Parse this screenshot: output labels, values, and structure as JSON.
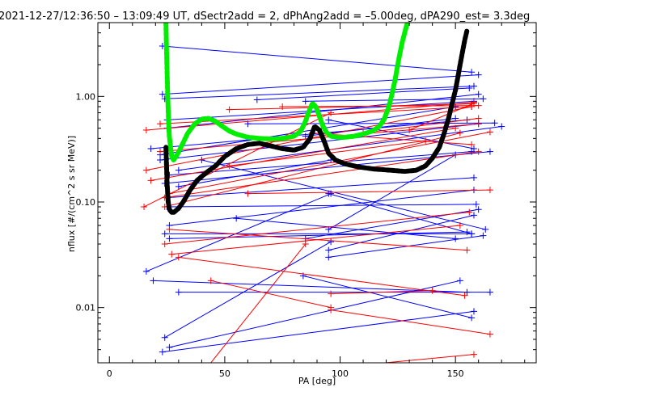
{
  "chart_data": {
    "type": "scatter",
    "title": "2021-12-27/12:36:50 – 13:09:49 UT, dSectr2add = 2, dPhAng2add = –5.00deg, dPA290_est=   3.3deg",
    "xlabel": "PA [deg]",
    "ylabel": "nflux [#/(cm^2 s sr MeV)]",
    "xlim": [
      -5,
      185
    ],
    "ylim": [
      0.003,
      5.0
    ],
    "yscale": "log",
    "x_ticks": [
      0,
      50,
      100,
      150
    ],
    "x_tick_labels": [
      "0",
      "50",
      "100",
      "150"
    ],
    "y_ticks": [
      0.01,
      0.1,
      1.0
    ],
    "y_tick_labels": [
      "0.01",
      "0.10",
      "1.00"
    ],
    "grid": false,
    "legend": "none",
    "series": [
      {
        "color": "#0000ff",
        "marker": "+",
        "segments": [
          [
            [
              23,
              3.0
            ],
            [
              157,
              1.7
            ]
          ],
          [
            [
              23,
              1.05
            ],
            [
              160,
              1.6
            ]
          ],
          [
            [
              24,
              0.95
            ],
            [
              158,
              1.25
            ]
          ],
          [
            [
              25,
              0.6
            ],
            [
              158,
              0.9
            ]
          ],
          [
            [
              25,
              0.5
            ],
            [
              160,
              1.05
            ]
          ],
          [
            [
              18,
              0.32
            ],
            [
              155,
              0.6
            ]
          ],
          [
            [
              22,
              0.28
            ],
            [
              150,
              0.8
            ]
          ],
          [
            [
              22,
              0.25
            ],
            [
              160,
              0.55
            ]
          ],
          [
            [
              26,
              0.18
            ],
            [
              157,
              0.3
            ]
          ],
          [
            [
              24,
              0.15
            ],
            [
              165,
              0.3
            ]
          ],
          [
            [
              30,
              0.14
            ],
            [
              96,
              0.25
            ]
          ],
          [
            [
              25,
              0.11
            ],
            [
              158,
              0.17
            ]
          ],
          [
            [
              25,
              0.09
            ],
            [
              159,
              0.095
            ]
          ],
          [
            [
              26,
              0.06
            ],
            [
              158,
              0.13
            ]
          ],
          [
            [
              24,
              0.05
            ],
            [
              157,
              0.05
            ]
          ],
          [
            [
              26,
              0.045
            ],
            [
              155,
              0.052
            ]
          ],
          [
            [
              16,
              0.022
            ],
            [
              96,
              0.12
            ]
          ],
          [
            [
              19,
              0.018
            ],
            [
              155,
              0.014
            ]
          ],
          [
            [
              24,
              0.0052
            ],
            [
              96,
              0.042
            ]
          ],
          [
            [
              23,
              0.0038
            ],
            [
              158,
              0.0092
            ]
          ],
          [
            [
              26,
              0.0042
            ],
            [
              152,
              0.018
            ]
          ],
          [
            [
              30,
              0.014
            ],
            [
              165,
              0.014
            ]
          ],
          [
            [
              40,
              0.25
            ],
            [
              163,
              0.055
            ]
          ],
          [
            [
              55,
              0.07
            ],
            [
              150,
              0.045
            ]
          ],
          [
            [
              85,
              0.045
            ],
            [
              160,
              0.085
            ]
          ],
          [
            [
              95,
              0.035
            ],
            [
              158,
              0.075
            ]
          ],
          [
            [
              84,
              0.02
            ],
            [
              157,
              0.008
            ]
          ],
          [
            [
              95,
              0.055
            ],
            [
              150,
              0.28
            ]
          ],
          [
            [
              30,
              0.2
            ],
            [
              170,
              0.52
            ]
          ],
          [
            [
              95,
              0.6
            ],
            [
              158,
              0.32
            ]
          ],
          [
            [
              60,
              0.55
            ],
            [
              167,
              0.56
            ]
          ],
          [
            [
              64,
              0.93
            ],
            [
              156,
              1.2
            ]
          ],
          [
            [
              85,
              0.9
            ],
            [
              162,
              0.95
            ]
          ],
          [
            [
              85,
              0.42
            ],
            [
              150,
              0.62
            ]
          ],
          [
            [
              95,
              0.12
            ],
            [
              157,
              0.05
            ]
          ],
          [
            [
              95,
              0.03
            ],
            [
              162,
              0.048
            ]
          ]
        ]
      },
      {
        "color": "#ff0000",
        "marker": "+",
        "segments": [
          [
            [
              16,
              0.48
            ],
            [
              158,
              0.88
            ]
          ],
          [
            [
              16,
              0.2
            ],
            [
              157,
              0.8
            ]
          ],
          [
            [
              18,
              0.16
            ],
            [
              150,
              0.5
            ]
          ],
          [
            [
              22,
              0.55
            ],
            [
              157,
              0.8
            ]
          ],
          [
            [
              22,
              0.3
            ],
            [
              160,
              0.55
            ]
          ],
          [
            [
              24,
              0.09
            ],
            [
              152,
              0.45
            ]
          ],
          [
            [
              15,
              0.09
            ],
            [
              96,
              0.7
            ]
          ],
          [
            [
              26,
              0.12
            ],
            [
              165,
              0.46
            ]
          ],
          [
            [
              24,
              0.11
            ],
            [
              160,
              0.3
            ]
          ],
          [
            [
              24,
              0.04
            ],
            [
              156,
              0.08
            ]
          ],
          [
            [
              27,
              0.032
            ],
            [
              152,
              0.06
            ]
          ],
          [
            [
              26,
              0.055
            ],
            [
              155,
              0.035
            ]
          ],
          [
            [
              30,
              0.03
            ],
            [
              154,
              0.013
            ]
          ],
          [
            [
              44,
              0.018
            ],
            [
              96,
              0.01
            ]
          ],
          [
            [
              52,
              0.75
            ],
            [
              157,
              0.85
            ]
          ],
          [
            [
              52,
              0.22
            ],
            [
              137,
              0.38
            ]
          ],
          [
            [
              60,
              0.12
            ],
            [
              165,
              0.13
            ]
          ],
          [
            [
              33,
              0.0015
            ],
            [
              85,
              0.04
            ]
          ],
          [
            [
              96,
              0.0095
            ],
            [
              165,
              0.0056
            ]
          ],
          [
            [
              96,
              0.0135
            ],
            [
              140,
              0.0145
            ]
          ],
          [
            [
              105,
              0.0028
            ],
            [
              158,
              0.0036
            ]
          ],
          [
            [
              88,
              0.45
            ],
            [
              157,
              0.35
            ]
          ],
          [
            [
              110,
              0.45
            ],
            [
              160,
              0.62
            ]
          ],
          [
            [
              130,
              0.48
            ],
            [
              158,
              0.86
            ]
          ],
          [
            [
              75,
              0.8
            ],
            [
              160,
              0.82
            ]
          ]
        ]
      },
      {
        "color": "#00ee00",
        "style": "thick-dashed",
        "x": [
          24.5,
          24.7,
          25.0,
          25.3,
          25.6,
          26.0,
          26.5,
          27.0,
          27.8,
          29.0,
          31,
          34,
          37,
          40,
          43,
          46,
          49,
          52,
          55,
          60,
          65,
          70,
          75,
          80,
          83,
          85,
          86.5,
          88,
          89.5,
          91,
          92.5,
          94,
          96,
          99,
          102,
          106,
          110,
          114,
          117,
          119,
          121,
          122.5,
          124,
          125,
          126,
          127,
          128,
          128.7,
          129.3
        ],
        "y": [
          5.0,
          3.2,
          1.7,
          1.0,
          0.62,
          0.42,
          0.33,
          0.27,
          0.25,
          0.27,
          0.33,
          0.45,
          0.55,
          0.61,
          0.62,
          0.58,
          0.52,
          0.47,
          0.44,
          0.41,
          0.4,
          0.395,
          0.4,
          0.42,
          0.47,
          0.58,
          0.72,
          0.86,
          0.8,
          0.65,
          0.53,
          0.46,
          0.42,
          0.41,
          0.41,
          0.42,
          0.44,
          0.47,
          0.52,
          0.6,
          0.78,
          1.05,
          1.5,
          2.0,
          2.6,
          3.3,
          4.0,
          4.6,
          5.0
        ]
      },
      {
        "color": "#000000",
        "style": "thick-dashed",
        "x": [
          24.5,
          25,
          25.5,
          26,
          27,
          28,
          30,
          32,
          35,
          38,
          42,
          46,
          50,
          55,
          60,
          65,
          70,
          75,
          80,
          84,
          87,
          89,
          91,
          93,
          95,
          98,
          102,
          108,
          115,
          122,
          128,
          133,
          137,
          140,
          143,
          145,
          147,
          148.5,
          150,
          151,
          152,
          153,
          154,
          155
        ],
        "y": [
          0.33,
          0.15,
          0.1,
          0.085,
          0.08,
          0.08,
          0.087,
          0.1,
          0.13,
          0.16,
          0.19,
          0.22,
          0.27,
          0.32,
          0.35,
          0.36,
          0.34,
          0.32,
          0.31,
          0.33,
          0.4,
          0.52,
          0.48,
          0.38,
          0.29,
          0.25,
          0.23,
          0.215,
          0.205,
          0.2,
          0.195,
          0.2,
          0.22,
          0.26,
          0.33,
          0.44,
          0.62,
          0.85,
          1.15,
          1.5,
          2.0,
          2.6,
          3.4,
          4.2
        ]
      }
    ]
  }
}
